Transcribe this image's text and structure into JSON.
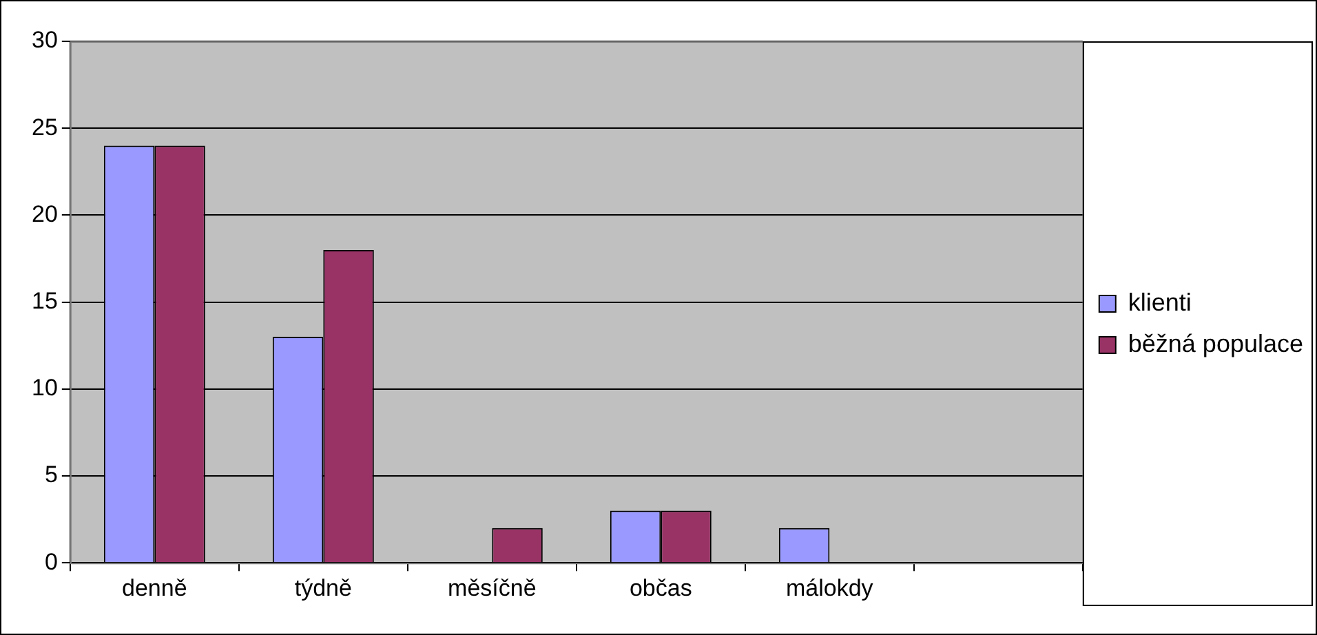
{
  "chart_data": {
    "type": "bar",
    "categories": [
      "denně",
      "týdně",
      "měsíčně",
      "občas",
      "málokdy",
      null
    ],
    "series": [
      {
        "name": "klienti",
        "color": "#9999ff",
        "values": [
          24,
          13,
          0,
          3,
          2,
          0
        ]
      },
      {
        "name": "běžná populace",
        "color": "#993366",
        "values": [
          24,
          18,
          2,
          3,
          0,
          0
        ]
      }
    ],
    "ylim": [
      0,
      30
    ],
    "yticks": [
      0,
      5,
      10,
      15,
      20,
      25,
      30
    ],
    "grid": "y",
    "legend": "right"
  }
}
